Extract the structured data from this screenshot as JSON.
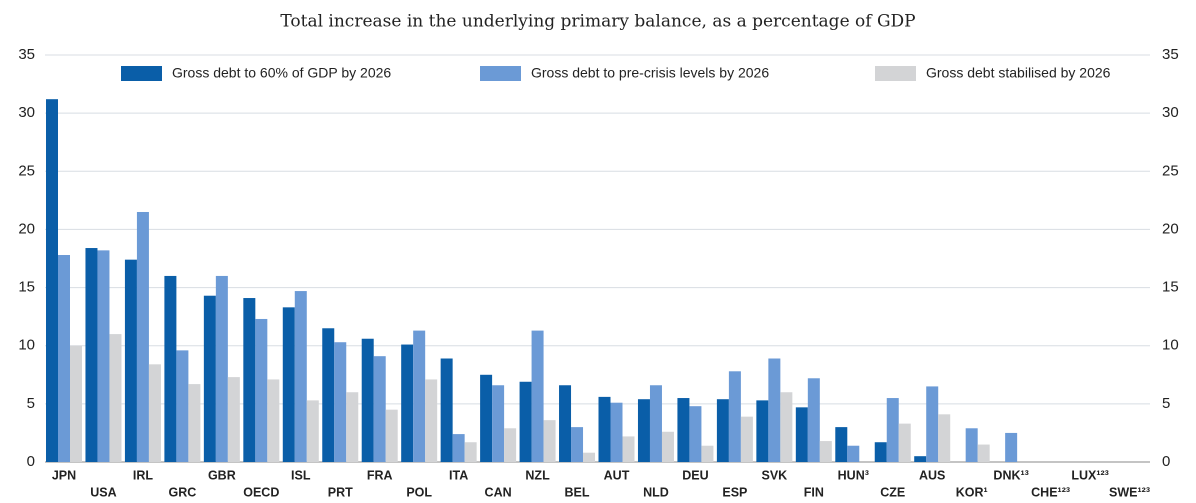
{
  "chart_data": {
    "type": "bar",
    "subtitle": "Total increase in the underlying primary balance, as a percentage of GDP",
    "categories": [
      "JPN",
      "USA",
      "IRL",
      "GRC",
      "GBR",
      "OECD",
      "ISL",
      "PRT",
      "FRA",
      "POL",
      "ITA",
      "CAN",
      "NZL",
      "BEL",
      "AUT",
      "NLD",
      "DEU",
      "ESP",
      "SVK",
      "FIN",
      "HUN³",
      "CZE",
      "AUS",
      "KOR¹",
      "DNK¹³",
      "CHE¹²³",
      "LUX¹²³",
      "SWE¹²³"
    ],
    "series": [
      {
        "name": "Gross debt to 60% of GDP by 2026",
        "color": "#0a5ea8",
        "values": [
          31.2,
          18.4,
          17.4,
          16.0,
          14.3,
          14.1,
          13.3,
          11.5,
          10.6,
          10.1,
          8.9,
          7.5,
          6.9,
          6.6,
          5.6,
          5.4,
          5.5,
          5.4,
          5.3,
          4.7,
          3.0,
          1.7,
          0.5,
          0,
          0,
          0,
          0,
          0
        ]
      },
      {
        "name": "Gross debt to pre-crisis levels by 2026",
        "color": "#6b9ad6",
        "values": [
          17.8,
          18.2,
          21.5,
          9.6,
          16.0,
          12.3,
          14.7,
          10.3,
          9.1,
          11.3,
          2.4,
          6.6,
          11.3,
          3.0,
          5.1,
          6.6,
          4.8,
          7.8,
          8.9,
          7.2,
          1.4,
          5.5,
          6.5,
          2.9,
          2.5,
          0,
          0,
          0
        ]
      },
      {
        "name": "Gross debt stabilised by 2026",
        "color": "#d3d4d6",
        "values": [
          10.0,
          11.0,
          8.4,
          6.7,
          7.3,
          7.1,
          5.3,
          6.0,
          4.5,
          7.1,
          1.7,
          2.9,
          3.6,
          0.8,
          2.2,
          2.6,
          1.4,
          3.9,
          6.0,
          1.8,
          0,
          3.3,
          4.1,
          1.5,
          0,
          0,
          0,
          0
        ]
      }
    ],
    "ylim": [
      0,
      35
    ],
    "yticks": [
      0,
      5,
      10,
      15,
      20,
      25,
      30,
      35
    ],
    "grid": true
  }
}
